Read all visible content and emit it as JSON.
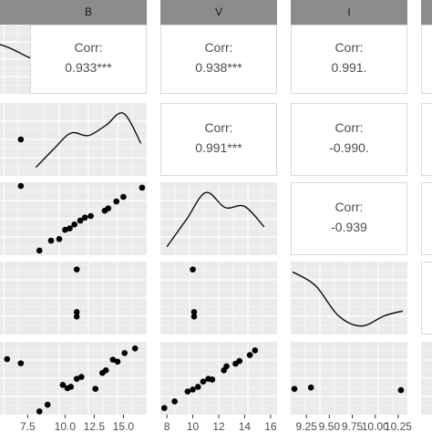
{
  "chart_data": {
    "type": "scatter",
    "variables": [
      "B",
      "V",
      "I"
    ],
    "column_strips": [
      {
        "label": ""
      },
      {
        "label": "B"
      },
      {
        "label": "V"
      },
      {
        "label": "I"
      },
      {
        "label": ""
      }
    ],
    "correlations": [
      {
        "pair": "B-?",
        "label": "Corr:",
        "value": "0.933***"
      },
      {
        "pair": "V-?",
        "label": "Corr:",
        "value": "0.938***"
      },
      {
        "pair": "I-?",
        "label": "Corr:",
        "value": "0.991."
      },
      {
        "pair": "V-B",
        "label": "Corr:",
        "value": "0.991***"
      },
      {
        "pair": "I-B",
        "label": "Corr:",
        "value": "-0.990."
      },
      {
        "pair": "I-V",
        "label": "Corr:",
        "value": "-0.939"
      }
    ],
    "x_tick_labels": {
      "first_column": [
        "7.5"
      ],
      "B": [
        "10.0",
        "12.5",
        "15.0"
      ],
      "V": [
        "8",
        "10",
        "12",
        "14",
        "16"
      ],
      "I": [
        "9.25",
        "9.50",
        "9.75",
        "10.00",
        "10.25"
      ]
    },
    "x_ticks": {
      "B": [
        10.0,
        12.5,
        15.0
      ],
      "V": [
        8,
        10,
        12,
        14,
        16
      ],
      "I": [
        9.25,
        9.5,
        9.75,
        10.0,
        10.25
      ]
    },
    "densities": {
      "B": {
        "x": [
          7.5,
          9,
          10.5,
          12,
          13.5,
          15,
          16.5
        ],
        "y": [
          0.05,
          0.35,
          0.62,
          0.58,
          0.75,
          0.95,
          0.45
        ]
      },
      "V": {
        "x": [
          8,
          9.5,
          11,
          12.5,
          14,
          15.5
        ],
        "y": [
          0.05,
          0.5,
          0.95,
          0.7,
          0.72,
          0.38
        ]
      },
      "I": {
        "x": [
          9.1,
          9.35,
          9.6,
          9.85,
          10.1,
          10.3
        ],
        "y": [
          0.95,
          0.72,
          0.22,
          0.05,
          0.22,
          0.3
        ]
      }
    },
    "panels": {
      "first_row_B": {
        "x": [
          7.4,
          7.7,
          8.0
        ],
        "y": [
          1,
          1,
          1
        ]
      },
      "B_V_scatter": {
        "x": [
          7.8,
          8.8,
          9.5,
          10.0,
          10.4,
          10.8,
          11.3,
          11.7,
          12.2,
          13.4,
          13.7,
          14.4,
          15.0,
          16.6
        ],
        "y": [
          8.6,
          9.9,
          10.1,
          11.3,
          11.5,
          12.0,
          12.5,
          12.9,
          13.1,
          13.8,
          14.1,
          15.0,
          15.6,
          16.8
        ]
      },
      "B_I_scatter": {
        "x": [
          11.0,
          11.0,
          11.0
        ],
        "y": [
          10.28,
          9.9,
          9.86
        ]
      },
      "V_I_scatter": {
        "x": [
          10.0,
          10.1,
          10.1
        ],
        "y": [
          10.28,
          9.9,
          9.86
        ]
      },
      "first_col_row5": {
        "x": [
          7.2,
          7.4,
          7.6
        ],
        "y": [
          14.5,
          13.9,
          13.3
        ]
      },
      "B_row5_scatter": {
        "x": [
          7.8,
          8.5,
          9.8,
          10.2,
          10.5,
          11.0,
          11.4,
          12.6,
          13.2,
          13.5,
          14.1,
          14.5,
          15.1,
          16.0
        ],
        "y": [
          7.0,
          8.0,
          11.0,
          10.5,
          10.7,
          11.9,
          12.2,
          10.4,
          12.8,
          13.2,
          14.8,
          14.5,
          15.8,
          16.5
        ]
      },
      "V_row5_scatter": {
        "x": [
          7.8,
          8.6,
          9.6,
          10.0,
          10.4,
          10.8,
          11.2,
          11.5,
          12.4,
          12.6,
          13.3,
          13.6,
          14.4,
          14.8
        ],
        "y": [
          7.5,
          8.5,
          10.0,
          10.3,
          10.7,
          11.5,
          11.9,
          11.8,
          13.2,
          13.8,
          14.2,
          14.6,
          15.5,
          16.2
        ]
      },
      "I_row5_scatter": {
        "x": [
          9.12,
          9.3,
          10.28
        ],
        "y": [
          10.4,
          10.6,
          10.2
        ]
      }
    },
    "colors": {
      "strip_background": "#8c8c8c",
      "panel_background": "#ebebeb",
      "grid": "#ffffff",
      "point": "#000000",
      "density_line": "#000000",
      "panel_border": "#d9d9d9"
    },
    "xlim": {
      "B": [
        7.0,
        17.0
      ],
      "V": [
        7.5,
        16.5
      ],
      "I": [
        9.08,
        10.35
      ],
      "first_column": [
        6.3,
        8.0
      ]
    }
  }
}
